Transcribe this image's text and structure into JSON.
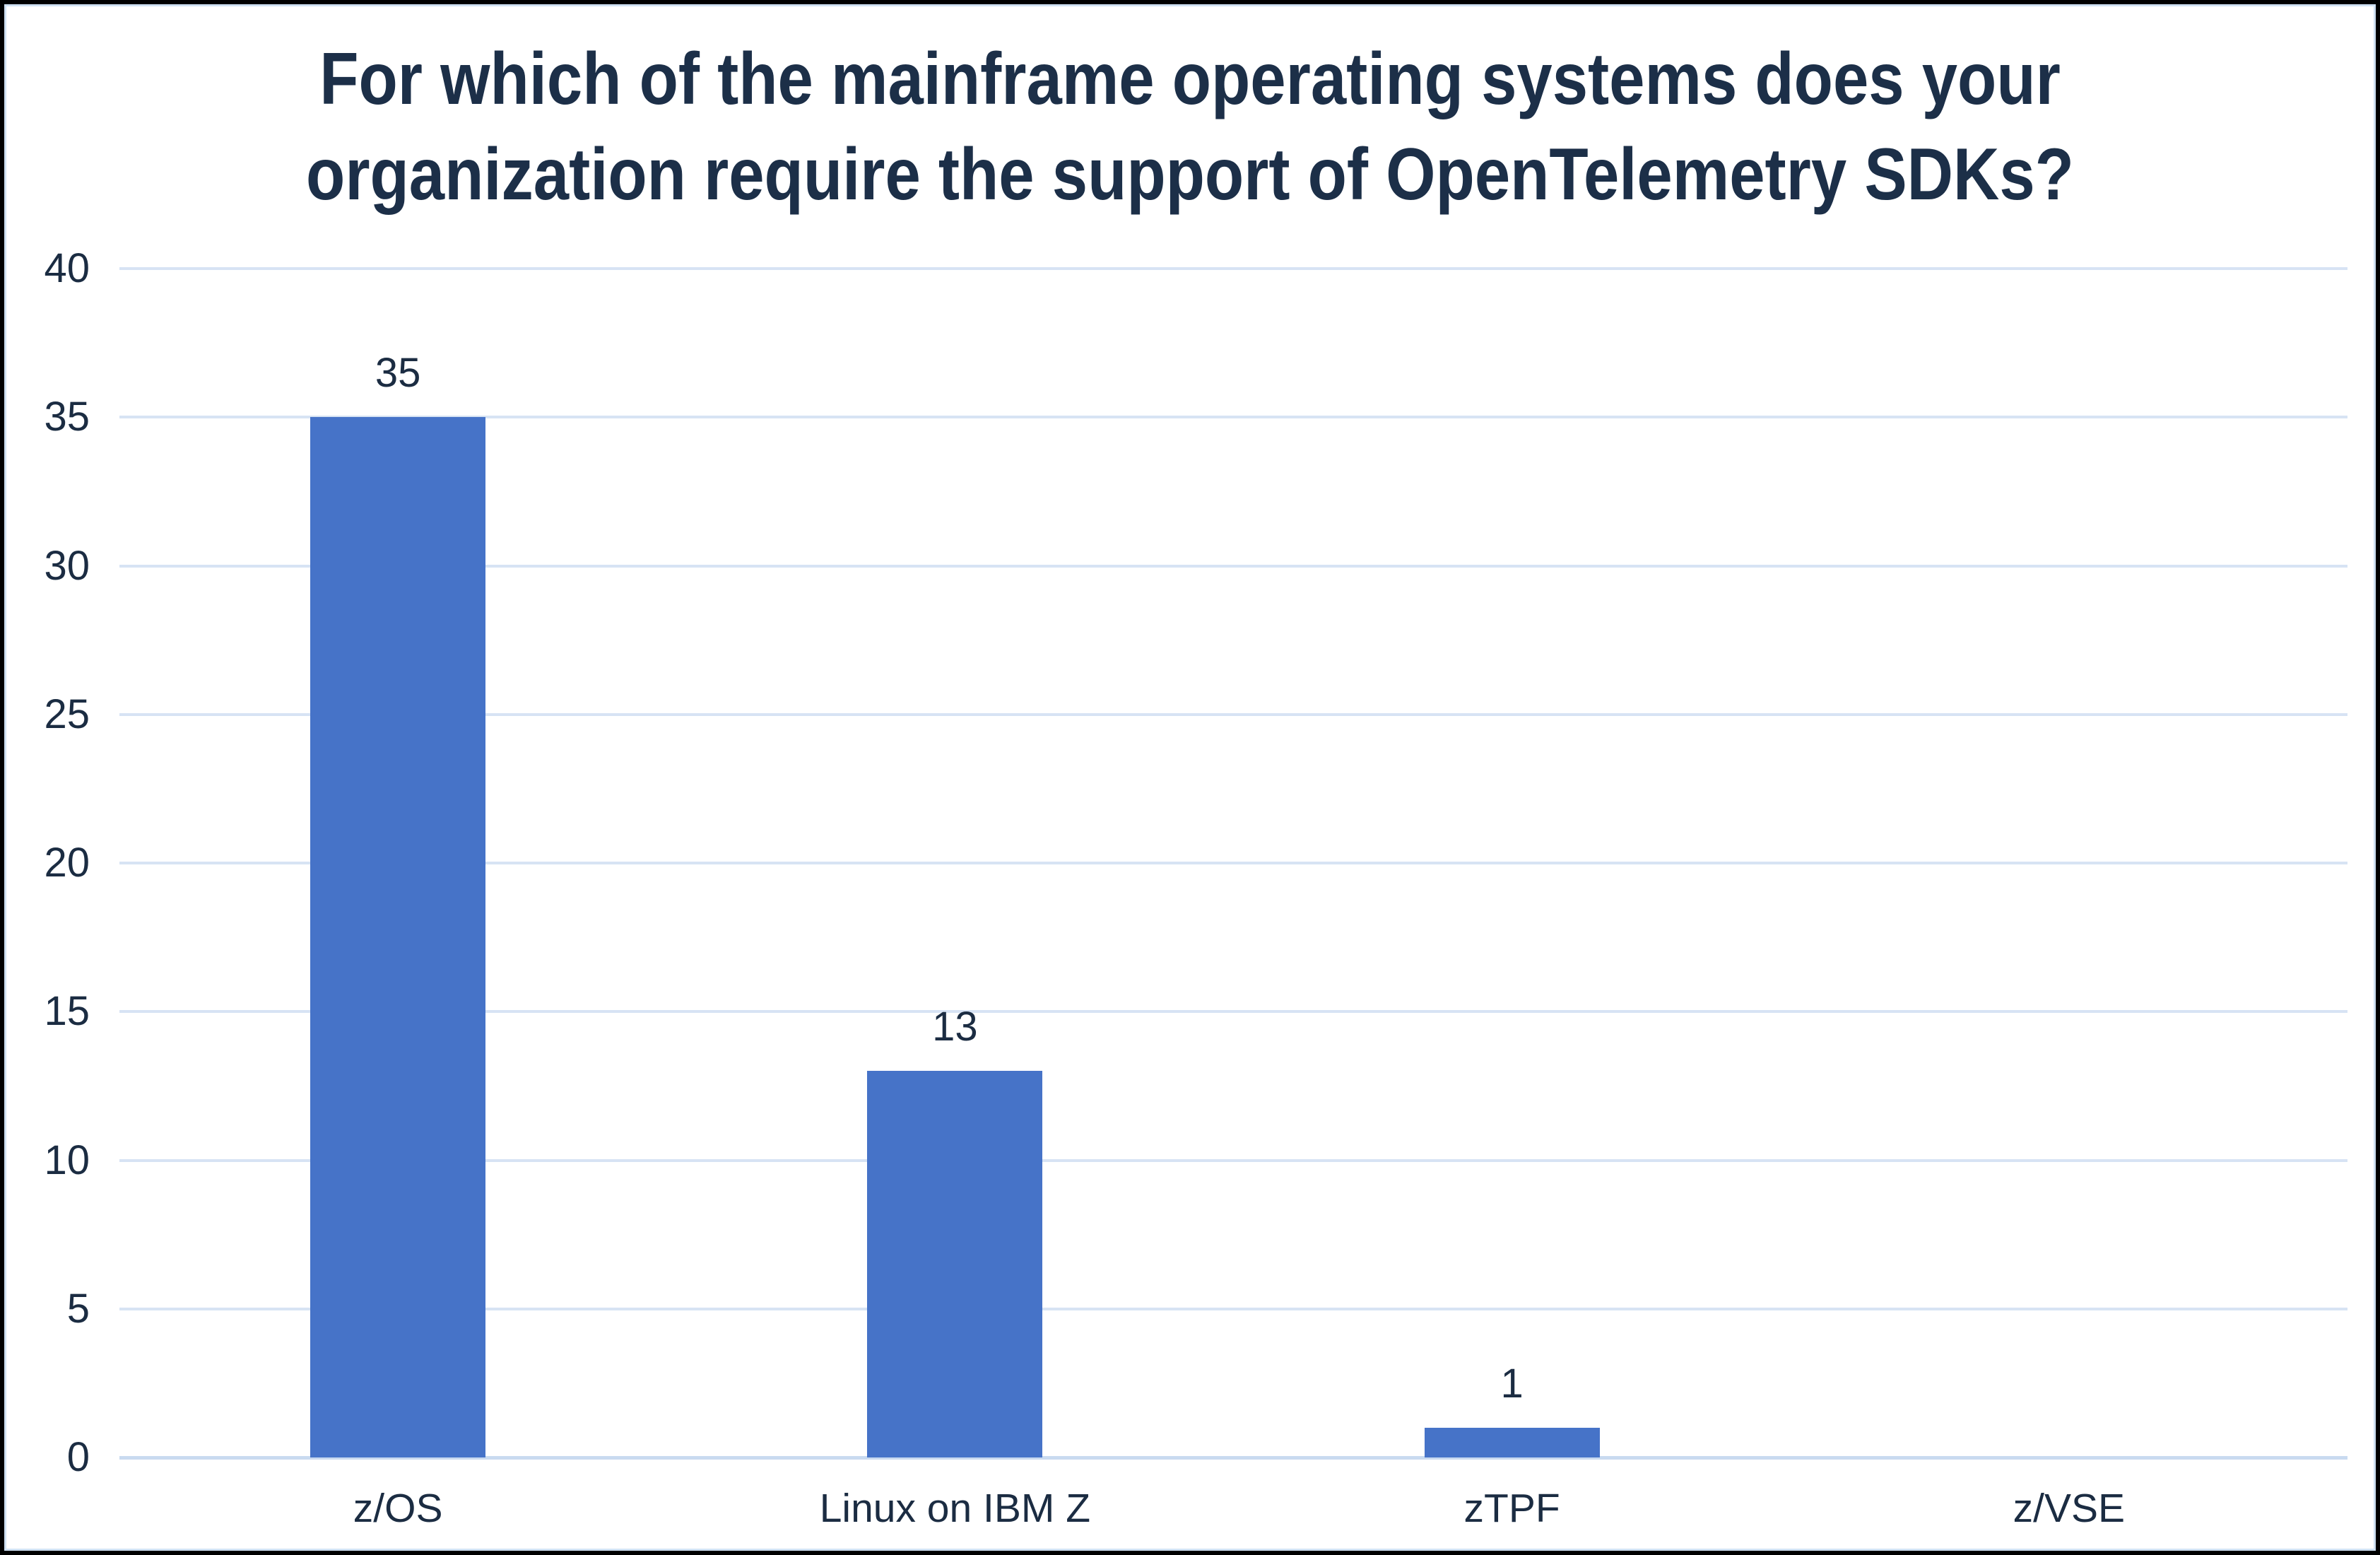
{
  "chart_data": {
    "type": "bar",
    "title": "For which of the mainframe operating systems does your organization require the support of OpenTelemetry SDKs?",
    "title_lines": [
      "For which of the mainframe operating systems does your",
      "organization require the support of OpenTelemetry SDKs?"
    ],
    "categories": [
      "z/OS",
      "Linux on IBM Z",
      "zTPF",
      "z/VSE"
    ],
    "values": [
      35,
      13,
      1,
      0
    ],
    "value_labels": [
      "35",
      "13",
      "1",
      ""
    ],
    "xlabel": "",
    "ylabel": "",
    "ylim": [
      0,
      40
    ],
    "yticks": [
      0,
      5,
      10,
      15,
      20,
      25,
      30,
      35,
      40
    ],
    "grid": true,
    "legend": false,
    "colors": {
      "bar": "#4673c8",
      "gridline": "#d7e3f4",
      "zero_line": "#c9daf0",
      "chart_border": "#cfe0f2",
      "outer_border": "#000000",
      "text": "#1b2c42",
      "title": "#1c2f48",
      "background": "#ffffff"
    }
  }
}
